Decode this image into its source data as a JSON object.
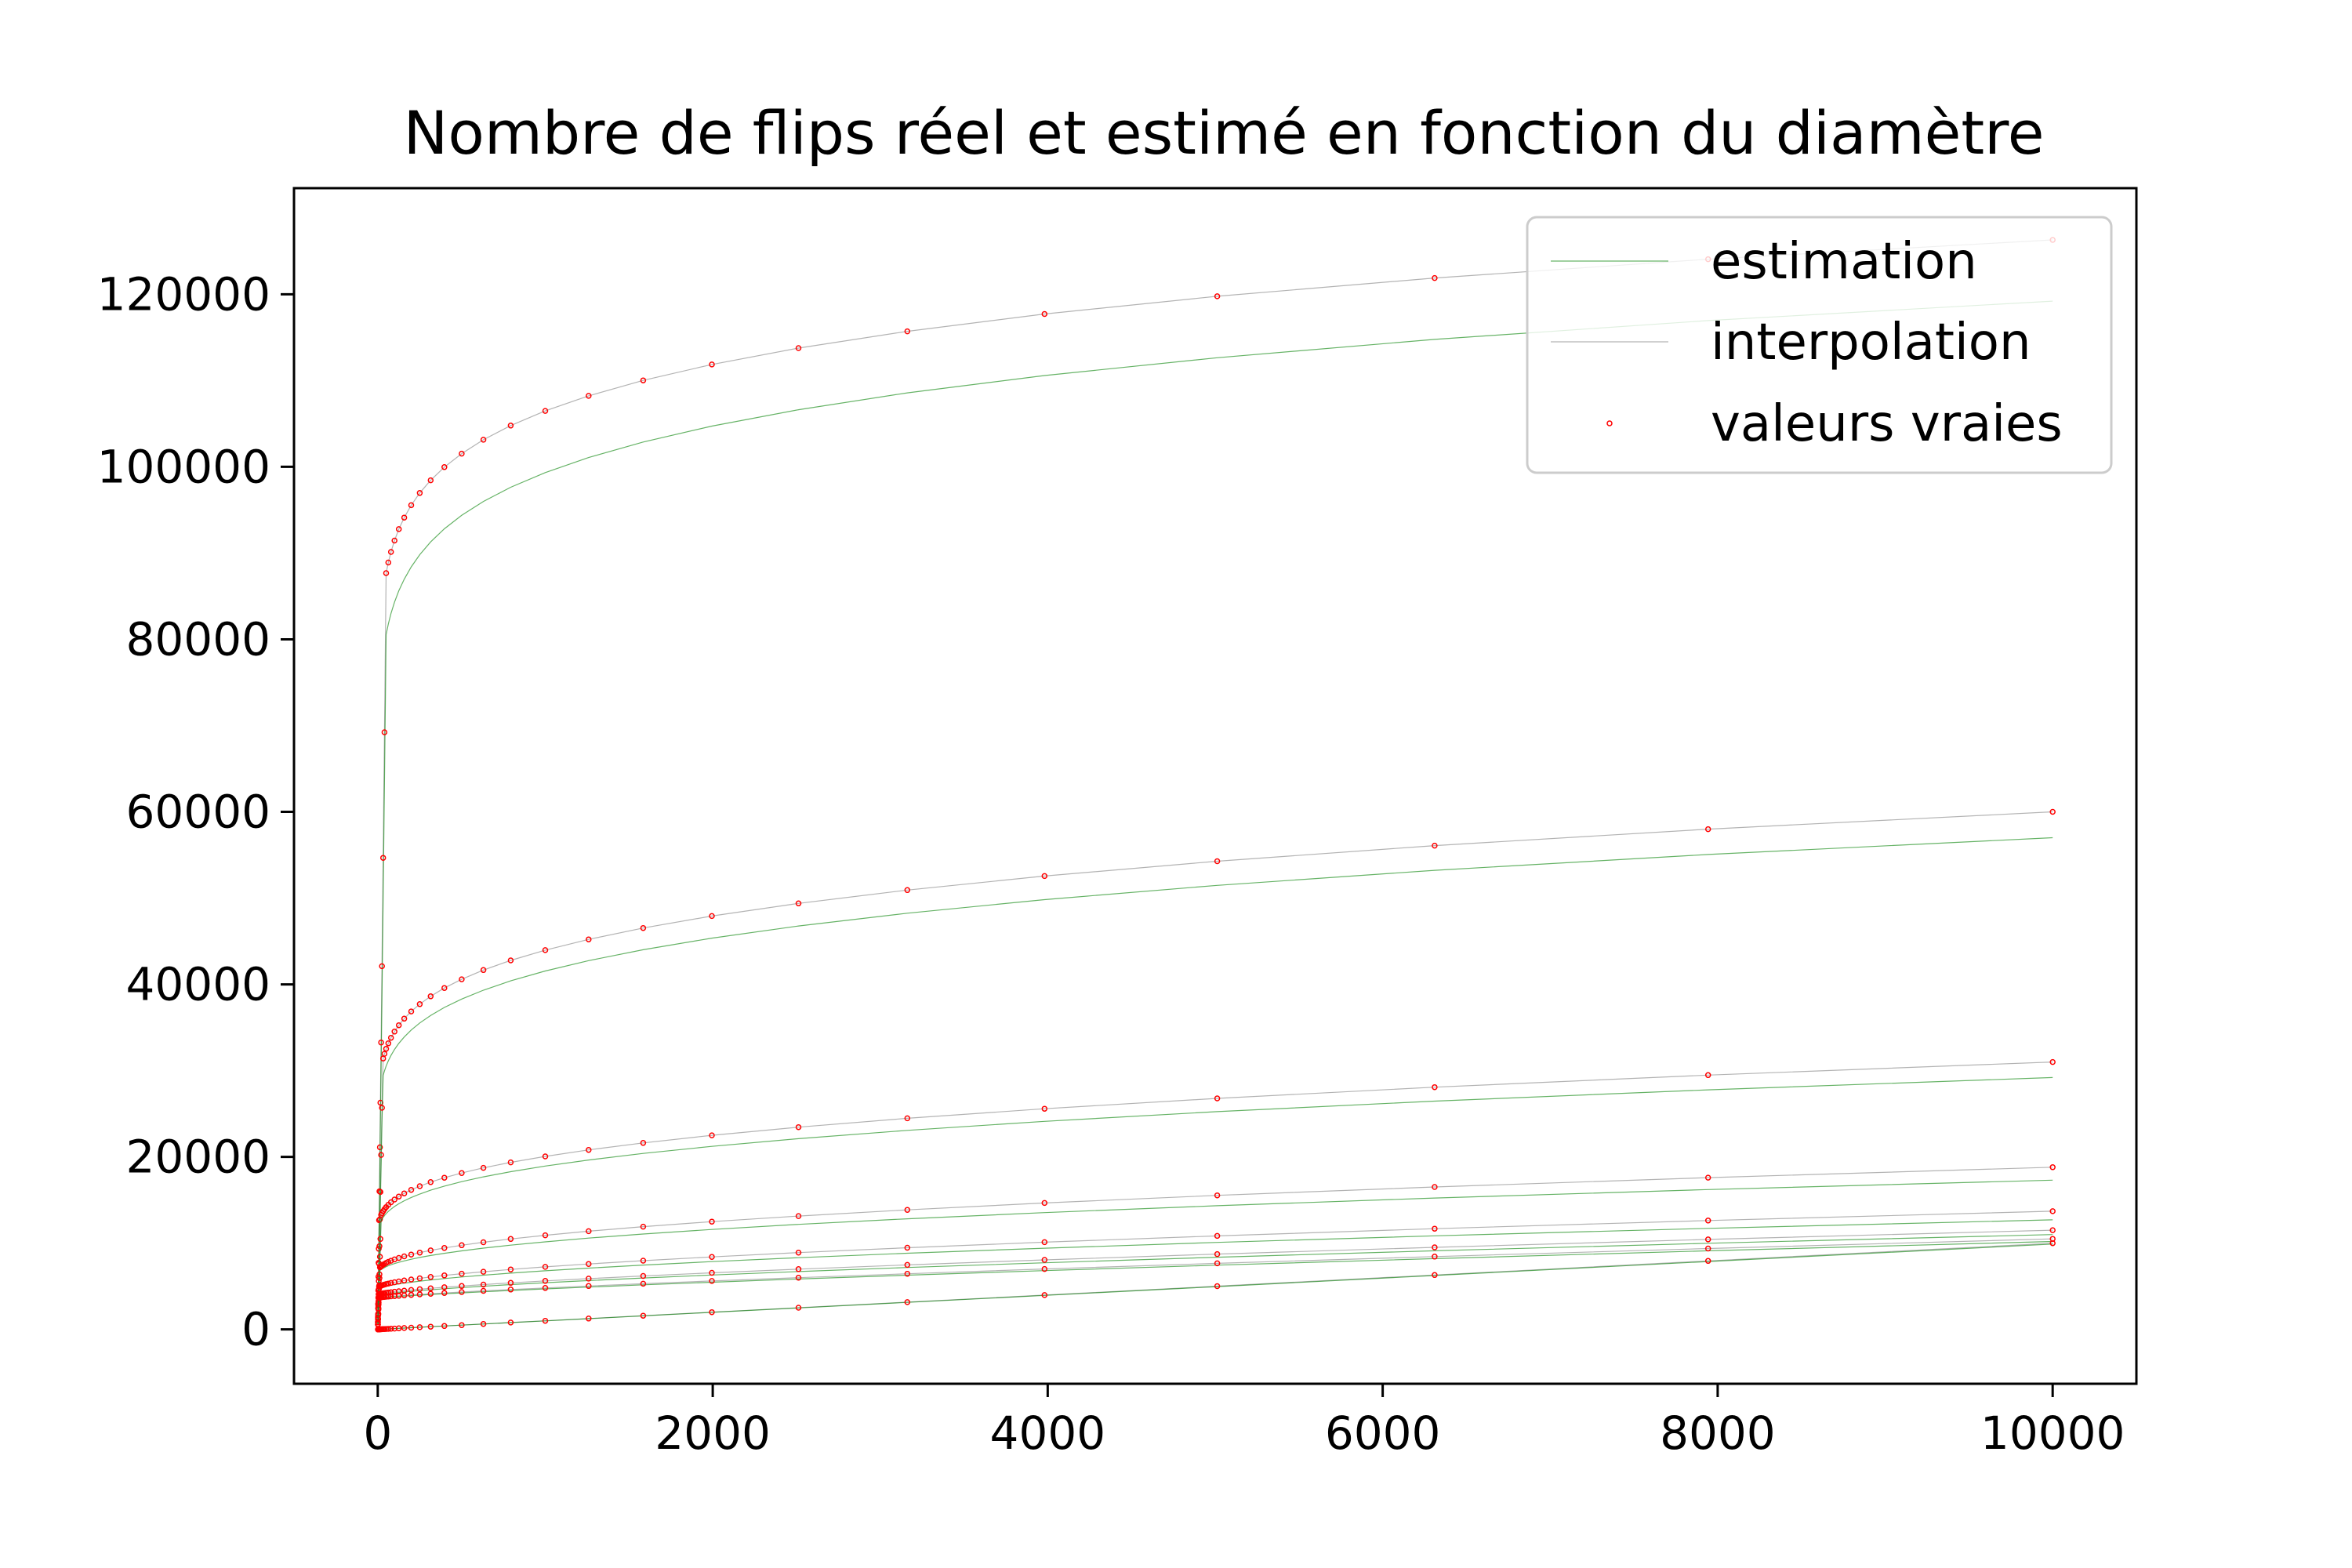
{
  "chart_data": {
    "type": "line",
    "title": "Nombre de flips réel et estimé en fonction du diamètre",
    "xlabel": "",
    "ylabel": "",
    "xlim": [
      -500,
      10500
    ],
    "ylim": [
      -6300,
      132300
    ],
    "xticks": [
      0,
      2000,
      4000,
      6000,
      8000,
      10000
    ],
    "yticks": [
      0,
      20000,
      40000,
      60000,
      80000,
      100000,
      120000
    ],
    "grid": false,
    "legend": {
      "position": "upper-right",
      "entries": [
        {
          "label": "estimation",
          "kind": "line",
          "color": "#008000"
        },
        {
          "label": "interpolation",
          "kind": "line",
          "color": "#808080"
        },
        {
          "label": "valeurs vraies",
          "kind": "marker",
          "color": "#ff0000"
        }
      ]
    },
    "x": [
      1,
      2,
      3,
      4,
      5,
      6,
      8,
      10,
      13,
      16,
      20,
      25,
      32,
      40,
      50,
      63,
      79,
      100,
      126,
      158,
      200,
      251,
      316,
      398,
      501,
      631,
      794,
      1000,
      1259,
      1585,
      1995,
      2512,
      3162,
      3981,
      5012,
      6310,
      7943,
      10000
    ],
    "families": [
      {
        "true_end": 126300,
        "est_end": 119200,
        "knee": 50,
        "est_low": 0.9
      },
      {
        "true_end": 60000,
        "est_end": 57000,
        "knee": 30,
        "est_low": 0.93
      },
      {
        "true_end": 31000,
        "est_end": 29200,
        "knee": 20,
        "est_low": 0.95
      },
      {
        "true_end": 18800,
        "est_end": 17300,
        "knee": 12,
        "est_low": 0.96
      },
      {
        "true_end": 13700,
        "est_end": 12700,
        "knee": 8,
        "est_low": 0.97
      },
      {
        "true_end": 11500,
        "est_end": 11000,
        "knee": 5,
        "est_low": 0.98
      },
      {
        "true_end": 10500,
        "est_end": 10200,
        "knee": 3,
        "est_low": 0.99
      },
      {
        "true_end": 10000,
        "est_end": 9900,
        "knee": 1,
        "est_low": 0.995
      }
    ]
  }
}
